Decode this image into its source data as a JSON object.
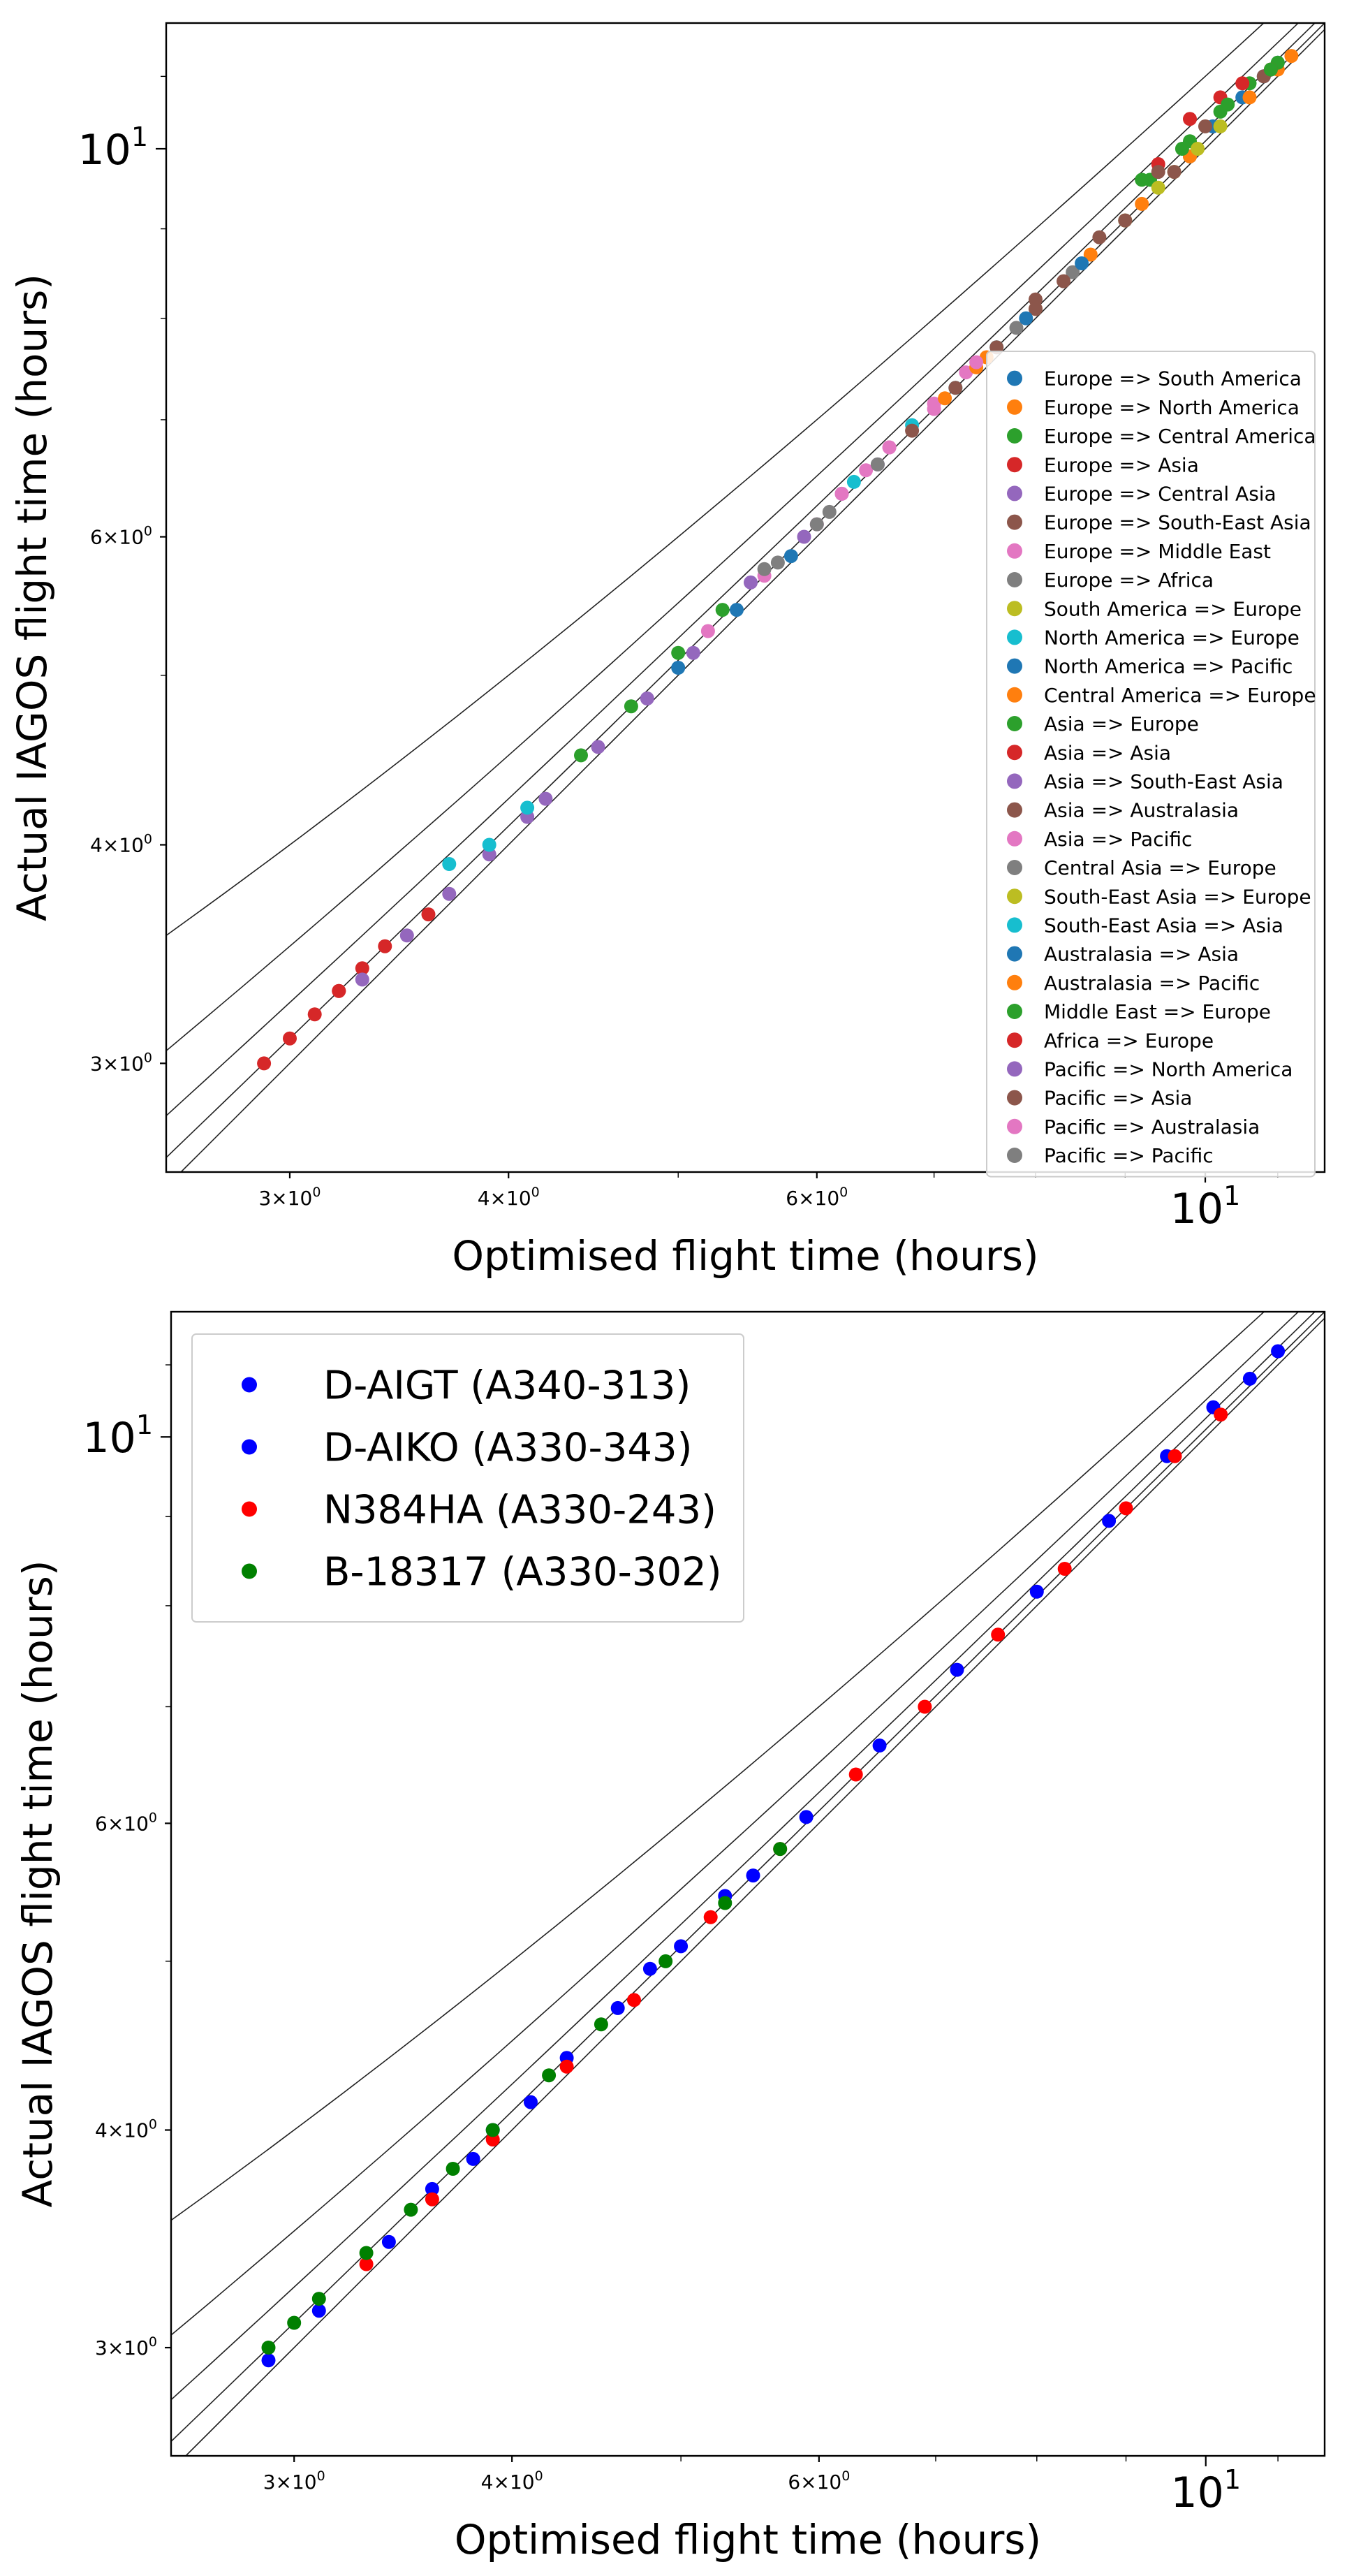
{
  "chart_data": [
    {
      "type": "scatter",
      "title": "",
      "xlabel": "Optimised flight time (hours)",
      "ylabel": "Actual IAGOS flight time (hours)",
      "xscale": "log",
      "yscale": "log",
      "xlim": [
        2.55,
        11.7
      ],
      "ylim": [
        2.6,
        11.8
      ],
      "xticks": [
        {
          "value": 3,
          "base": "3×10",
          "exp": "0"
        },
        {
          "value": 4,
          "base": "4×10",
          "exp": "0"
        },
        {
          "value": 6,
          "base": "6×10",
          "exp": "0"
        },
        {
          "value": 10,
          "base": "10",
          "exp": "1"
        }
      ],
      "yticks": [
        {
          "value": 3,
          "base": "3×10",
          "exp": "0"
        },
        {
          "value": 4,
          "base": "4×10",
          "exp": "0"
        },
        {
          "value": 6,
          "base": "6×10",
          "exp": "0"
        },
        {
          "value": 10,
          "base": "10",
          "exp": "1"
        }
      ],
      "reference_offsets_hours": [
        0,
        0.1,
        0.25,
        0.5,
        1.0
      ],
      "legend_position": "lower right",
      "series": [
        {
          "name": "Europe => South America",
          "color": "#1f77b4",
          "x": [
            9.8,
            10.1,
            10.5,
            10.8,
            11.0
          ],
          "y": [
            9.9,
            10.3,
            10.7,
            11.0,
            11.2
          ]
        },
        {
          "name": "Europe => North America",
          "color": "#ff7f0e",
          "x": [
            7.5,
            8.0,
            10.6,
            11.0,
            11.2
          ],
          "y": [
            7.6,
            8.1,
            10.7,
            11.1,
            11.3
          ]
        },
        {
          "name": "Europe => Central America",
          "color": "#2ca02c",
          "x": [
            9.3,
            9.8,
            10.2,
            10.6,
            11.0
          ],
          "y": [
            9.6,
            10.1,
            10.5,
            10.9,
            11.2
          ]
        },
        {
          "name": "Europe => Asia",
          "color": "#d62728",
          "x": [
            9.4,
            9.8,
            10.2,
            10.5,
            10.9
          ],
          "y": [
            9.8,
            10.4,
            10.7,
            10.9,
            11.1
          ]
        },
        {
          "name": "Europe => Central Asia",
          "color": "#9467bd",
          "x": [
            5.5,
            5.9,
            6.2,
            6.5
          ],
          "y": [
            5.65,
            6.0,
            6.35,
            6.6
          ]
        },
        {
          "name": "Europe => South-East Asia",
          "color": "#8c564b",
          "x": [
            8.0,
            8.7,
            9.4,
            10.0,
            10.8
          ],
          "y": [
            8.2,
            8.9,
            9.7,
            10.3,
            11.0
          ]
        },
        {
          "name": "Europe => Middle East",
          "color": "#e377c2",
          "x": [
            5.2,
            5.6,
            6.0,
            6.4
          ],
          "y": [
            5.3,
            5.7,
            6.1,
            6.55
          ]
        },
        {
          "name": "Europe => Africa",
          "color": "#7f7f7f",
          "x": [
            7.8,
            8.4,
            9.0
          ],
          "y": [
            7.9,
            8.5,
            9.1
          ]
        },
        {
          "name": "South America => Europe",
          "color": "#bcbd22",
          "x": [
            9.0,
            9.6,
            10.2
          ],
          "y": [
            9.1,
            9.7,
            10.3
          ]
        },
        {
          "name": "North America => Europe",
          "color": "#17becf",
          "x": [
            6.3,
            6.8,
            7.2,
            7.6
          ],
          "y": [
            6.45,
            6.95,
            7.3,
            7.7
          ]
        },
        {
          "name": "North America => Pacific",
          "color": "#1f77b4",
          "x": [
            5.0,
            5.4,
            5.8
          ],
          "y": [
            5.05,
            5.45,
            5.85
          ]
        },
        {
          "name": "Central America => Europe",
          "color": "#ff7f0e",
          "x": [
            8.6,
            9.2,
            9.8
          ],
          "y": [
            8.7,
            9.3,
            9.9
          ]
        },
        {
          "name": "Asia => Europe",
          "color": "#2ca02c",
          "x": [
            9.2,
            9.7,
            10.3,
            10.9
          ],
          "y": [
            9.6,
            10.0,
            10.6,
            11.1
          ]
        },
        {
          "name": "Asia => Asia",
          "color": "#d62728",
          "x": [
            2.9,
            3.0,
            3.1,
            3.2,
            3.3
          ],
          "y": [
            3.0,
            3.1,
            3.2,
            3.3,
            3.4
          ]
        },
        {
          "name": "Asia => South-East Asia",
          "color": "#9467bd",
          "x": [
            3.3,
            3.5,
            3.7,
            3.9,
            4.1
          ],
          "y": [
            3.35,
            3.55,
            3.75,
            3.95,
            4.15
          ]
        },
        {
          "name": "Asia => Australasia",
          "color": "#8c564b",
          "x": [
            6.8,
            7.2,
            7.6,
            8.0
          ],
          "y": [
            6.9,
            7.3,
            7.7,
            8.1
          ]
        },
        {
          "name": "Asia => Pacific",
          "color": "#e377c2",
          "x": [
            6.6,
            7.0,
            7.3
          ],
          "y": [
            6.75,
            7.15,
            7.45
          ]
        },
        {
          "name": "Central Asia => Europe",
          "color": "#7f7f7f",
          "x": [
            5.7,
            6.1
          ],
          "y": [
            5.8,
            6.2
          ]
        },
        {
          "name": "South-East Asia => Europe",
          "color": "#bcbd22",
          "x": [
            9.4,
            9.9
          ],
          "y": [
            9.5,
            10.0
          ]
        },
        {
          "name": "South-East Asia => Asia",
          "color": "#17becf",
          "x": [
            3.7,
            3.9,
            4.1
          ],
          "y": [
            3.9,
            4.0,
            4.2
          ]
        },
        {
          "name": "Australasia => Asia",
          "color": "#1f77b4",
          "x": [
            7.9,
            8.5
          ],
          "y": [
            8.0,
            8.6
          ]
        },
        {
          "name": "Australasia => Pacific",
          "color": "#ff7f0e",
          "x": [
            7.1,
            7.4
          ],
          "y": [
            7.2,
            7.5
          ]
        },
        {
          "name": "Middle East => Europe",
          "color": "#2ca02c",
          "x": [
            4.4,
            4.7,
            5.0,
            5.3
          ],
          "y": [
            4.5,
            4.8,
            5.15,
            5.45
          ]
        },
        {
          "name": "Africa => Europe",
          "color": "#d62728",
          "x": [
            3.2,
            3.4,
            3.6
          ],
          "y": [
            3.3,
            3.5,
            3.65
          ]
        },
        {
          "name": "Pacific => North America",
          "color": "#9467bd",
          "x": [
            4.2,
            4.5,
            4.8,
            5.1
          ],
          "y": [
            4.25,
            4.55,
            4.85,
            5.15
          ]
        },
        {
          "name": "Pacific => Asia",
          "color": "#8c564b",
          "x": [
            8.3,
            9.0,
            9.6
          ],
          "y": [
            8.4,
            9.1,
            9.7
          ]
        },
        {
          "name": "Pacific => Australasia",
          "color": "#e377c2",
          "x": [
            6.2,
            6.6,
            7.0,
            7.4
          ],
          "y": [
            6.35,
            6.75,
            7.1,
            7.55
          ]
        },
        {
          "name": "Pacific => Pacific",
          "color": "#7f7f7f",
          "x": [
            5.6,
            6.0,
            6.5
          ],
          "y": [
            5.75,
            6.1,
            6.6
          ]
        }
      ]
    },
    {
      "type": "scatter",
      "title": "",
      "xlabel": "Optimised flight time (hours)",
      "ylabel": "Actual IAGOS flight time (hours)",
      "xscale": "log",
      "yscale": "log",
      "xlim": [
        2.55,
        11.7
      ],
      "ylim": [
        2.6,
        11.8
      ],
      "xticks": [
        {
          "value": 3,
          "base": "3×10",
          "exp": "0"
        },
        {
          "value": 4,
          "base": "4×10",
          "exp": "0"
        },
        {
          "value": 6,
          "base": "6×10",
          "exp": "0"
        },
        {
          "value": 10,
          "base": "10",
          "exp": "1"
        }
      ],
      "yticks": [
        {
          "value": 3,
          "base": "3×10",
          "exp": "0"
        },
        {
          "value": 4,
          "base": "4×10",
          "exp": "0"
        },
        {
          "value": 6,
          "base": "6×10",
          "exp": "0"
        },
        {
          "value": 10,
          "base": "10",
          "exp": "1"
        }
      ],
      "reference_offsets_hours": [
        0,
        0.1,
        0.25,
        0.5,
        1.0
      ],
      "legend_position": "upper left",
      "series": [
        {
          "name": "D-AIGT (A340-313)",
          "color": "#0000ff",
          "x": [
            3.6,
            3.9,
            4.3,
            4.8,
            5.3,
            5.9,
            6.5,
            7.2,
            8.0,
            8.8,
            9.5,
            10.1,
            10.6,
            11.0
          ],
          "y": [
            3.7,
            4.0,
            4.4,
            4.95,
            5.45,
            6.05,
            6.65,
            7.35,
            8.15,
            8.95,
            9.75,
            10.4,
            10.8,
            11.2
          ]
        },
        {
          "name": "D-AIKO (A330-343)",
          "color": "#0000ff",
          "x": [
            2.9,
            3.1,
            3.4,
            3.8,
            4.1,
            4.6,
            5.0,
            5.5
          ],
          "y": [
            2.95,
            3.15,
            3.45,
            3.85,
            4.15,
            4.7,
            5.1,
            5.6
          ]
        },
        {
          "name": "N384HA (A330-243)",
          "color": "#ff0000",
          "x": [
            3.3,
            3.6,
            3.9,
            4.3,
            4.7,
            5.2,
            5.7,
            6.3,
            6.9,
            7.6,
            8.3,
            9.0,
            9.6,
            10.2
          ],
          "y": [
            3.35,
            3.65,
            3.95,
            4.35,
            4.75,
            5.3,
            5.8,
            6.4,
            7.0,
            7.7,
            8.4,
            9.1,
            9.75,
            10.3
          ]
        },
        {
          "name": "B-18317 (A330-302)",
          "color": "#008000",
          "x": [
            2.9,
            3.0,
            3.1,
            3.3,
            3.5,
            3.7,
            3.9,
            4.2,
            4.5,
            4.9,
            5.3,
            5.7
          ],
          "y": [
            3.0,
            3.1,
            3.2,
            3.4,
            3.6,
            3.8,
            4.0,
            4.3,
            4.6,
            5.0,
            5.4,
            5.8
          ]
        }
      ]
    }
  ]
}
